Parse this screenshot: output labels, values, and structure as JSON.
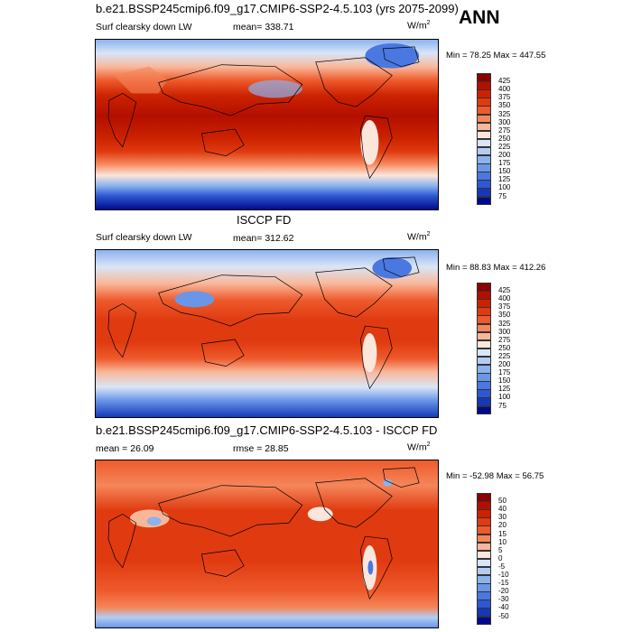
{
  "season": "ANN",
  "panels": [
    {
      "title": "b.e21.BSSP245cmip6.f09_g17.CMIP6-SSP2-4.5.103 (yrs 2075-2099)",
      "left_label": "Surf clearsky down LW",
      "stat_label": "mean= 338.71",
      "units": "W/m",
      "units_sup": "2",
      "minmax": "Min =  78.25 Max = 447.55",
      "palette": "abs"
    },
    {
      "title": "ISCCP FD",
      "left_label": "Surf clearsky down LW",
      "stat_label": "mean= 312.62",
      "units": "W/m",
      "units_sup": "2",
      "minmax": "Min =  88.83 Max = 412.26",
      "palette": "abs"
    },
    {
      "title": "b.e21.BSSP245cmip6.f09_g17.CMIP6-SSP2-4.5.103 - ISCCP FD",
      "left_label": "mean =  26.09",
      "stat_label": "rmse =  28.85",
      "units": "W/m",
      "units_sup": "2",
      "minmax": "Min = -52.98 Max =  56.75",
      "palette": "diff"
    }
  ],
  "colorbars": {
    "abs_levels": [
      "425",
      "400",
      "375",
      "350",
      "325",
      "300",
      "275",
      "250",
      "225",
      "200",
      "175",
      "150",
      "125",
      "100",
      "75"
    ],
    "abs_colors": [
      "#8b0000",
      "#b30f00",
      "#cc2200",
      "#e03a10",
      "#ee5a2c",
      "#f5865a",
      "#f9b79a",
      "#fbe6dc",
      "#d9e6f7",
      "#b3cdf2",
      "#8cb2ee",
      "#6a96e8",
      "#4a78e0",
      "#2e58d2",
      "#1638b8",
      "#000a8c"
    ],
    "diff_levels": [
      "50",
      "40",
      "30",
      "20",
      "15",
      "10",
      "5",
      "0",
      "-5",
      "-10",
      "-15",
      "-20",
      "-30",
      "-40",
      "-50"
    ],
    "diff_colors": [
      "#8b0000",
      "#b30f00",
      "#cc2200",
      "#e03a10",
      "#ee5a2c",
      "#f5865a",
      "#f9b79a",
      "#fbe6dc",
      "#d9e6f7",
      "#b3cdf2",
      "#8cb2ee",
      "#6a96e8",
      "#4a78e0",
      "#2e58d2",
      "#1638b8",
      "#000a8c"
    ]
  }
}
